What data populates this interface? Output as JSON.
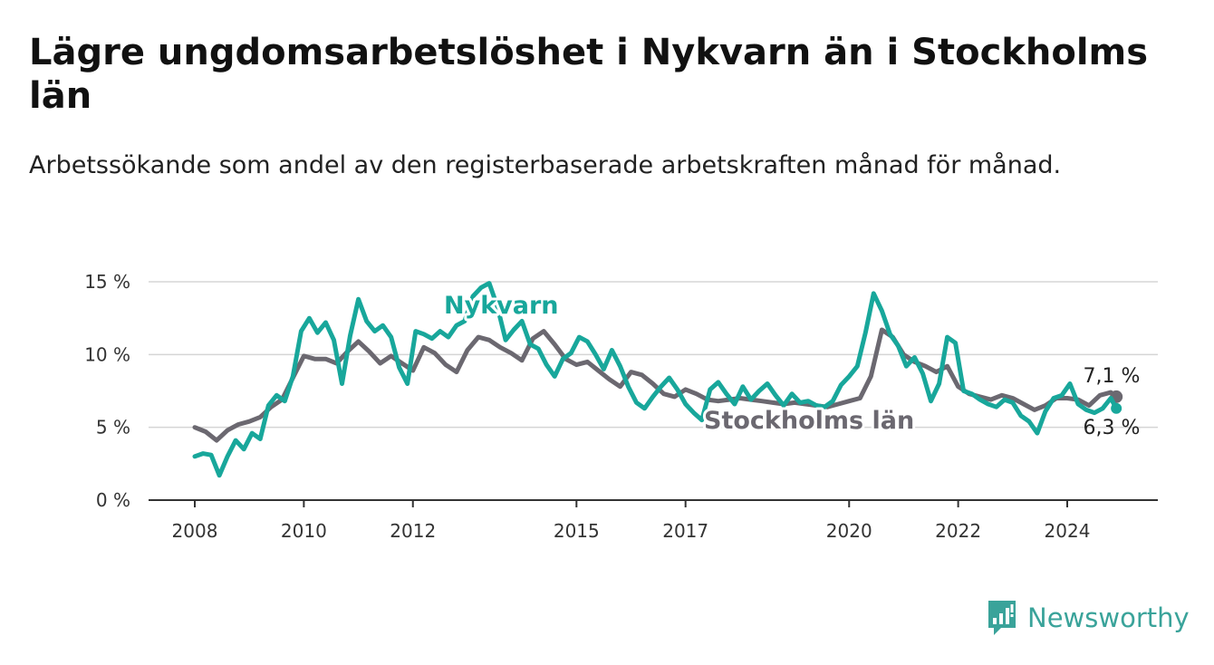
{
  "title": "Lägre ungdomsarbetslöshet i Nykvarn än i Stockholms län",
  "subtitle": "Arbetssökande som andel av den registerbaserade arbetskraften månad för månad.",
  "brand": {
    "name": "Newsworthy",
    "icon": "bar-chart-icon",
    "color": "#3aa39a"
  },
  "chart_data": {
    "type": "line",
    "ylim": [
      0,
      15
    ],
    "y_ticks": [
      0,
      5,
      10,
      15
    ],
    "y_tick_labels": [
      "0 %",
      "5 %",
      "10 %",
      "15 %"
    ],
    "x_ticks": [
      "2008",
      "2010",
      "2012",
      "2015",
      "2017",
      "2020",
      "2022",
      "2024"
    ],
    "grid": "horizontal",
    "series": [
      {
        "name": "Stockholms län",
        "color": "#6b6870",
        "end_label": "7,1 %",
        "points": [
          [
            2008.0,
            5.0
          ],
          [
            2008.2,
            4.7
          ],
          [
            2008.4,
            4.1
          ],
          [
            2008.6,
            4.8
          ],
          [
            2008.8,
            5.2
          ],
          [
            2009.0,
            5.4
          ],
          [
            2009.2,
            5.7
          ],
          [
            2009.4,
            6.4
          ],
          [
            2009.6,
            6.9
          ],
          [
            2009.8,
            8.4
          ],
          [
            2010.0,
            9.9
          ],
          [
            2010.2,
            9.7
          ],
          [
            2010.4,
            9.7
          ],
          [
            2010.6,
            9.4
          ],
          [
            2010.8,
            10.2
          ],
          [
            2011.0,
            10.9
          ],
          [
            2011.2,
            10.2
          ],
          [
            2011.4,
            9.4
          ],
          [
            2011.6,
            9.9
          ],
          [
            2011.8,
            9.4
          ],
          [
            2012.0,
            8.9
          ],
          [
            2012.2,
            10.5
          ],
          [
            2012.4,
            10.1
          ],
          [
            2012.6,
            9.3
          ],
          [
            2012.8,
            8.8
          ],
          [
            2013.0,
            10.3
          ],
          [
            2013.2,
            11.2
          ],
          [
            2013.4,
            11.0
          ],
          [
            2013.6,
            10.5
          ],
          [
            2013.8,
            10.1
          ],
          [
            2014.0,
            9.6
          ],
          [
            2014.2,
            11.1
          ],
          [
            2014.4,
            11.6
          ],
          [
            2014.6,
            10.7
          ],
          [
            2014.8,
            9.7
          ],
          [
            2015.0,
            9.3
          ],
          [
            2015.2,
            9.5
          ],
          [
            2015.4,
            8.9
          ],
          [
            2015.6,
            8.3
          ],
          [
            2015.8,
            7.8
          ],
          [
            2016.0,
            8.8
          ],
          [
            2016.2,
            8.6
          ],
          [
            2016.4,
            8.0
          ],
          [
            2016.6,
            7.3
          ],
          [
            2016.8,
            7.1
          ],
          [
            2017.0,
            7.6
          ],
          [
            2017.2,
            7.3
          ],
          [
            2017.4,
            6.9
          ],
          [
            2017.6,
            6.8
          ],
          [
            2017.8,
            6.9
          ],
          [
            2018.0,
            7.0
          ],
          [
            2018.2,
            6.9
          ],
          [
            2018.4,
            6.8
          ],
          [
            2018.6,
            6.7
          ],
          [
            2018.8,
            6.6
          ],
          [
            2019.0,
            6.7
          ],
          [
            2019.2,
            6.6
          ],
          [
            2019.4,
            6.5
          ],
          [
            2019.6,
            6.4
          ],
          [
            2019.8,
            6.6
          ],
          [
            2020.0,
            6.8
          ],
          [
            2020.2,
            7.0
          ],
          [
            2020.4,
            8.5
          ],
          [
            2020.6,
            11.7
          ],
          [
            2020.8,
            11.2
          ],
          [
            2021.0,
            10.0
          ],
          [
            2021.2,
            9.5
          ],
          [
            2021.4,
            9.2
          ],
          [
            2021.6,
            8.8
          ],
          [
            2021.8,
            9.2
          ],
          [
            2022.0,
            7.8
          ],
          [
            2022.2,
            7.3
          ],
          [
            2022.4,
            7.1
          ],
          [
            2022.6,
            6.9
          ],
          [
            2022.8,
            7.2
          ],
          [
            2023.0,
            7.0
          ],
          [
            2023.2,
            6.6
          ],
          [
            2023.4,
            6.2
          ],
          [
            2023.6,
            6.5
          ],
          [
            2023.8,
            7.0
          ],
          [
            2024.0,
            7.0
          ],
          [
            2024.2,
            6.9
          ],
          [
            2024.4,
            6.5
          ],
          [
            2024.6,
            7.2
          ],
          [
            2024.8,
            7.4
          ],
          [
            2024.9,
            7.1
          ]
        ]
      },
      {
        "name": "Nykvarn",
        "color": "#18a79b",
        "end_label": "6,3 %",
        "points": [
          [
            2008.0,
            3.0
          ],
          [
            2008.15,
            3.2
          ],
          [
            2008.3,
            3.1
          ],
          [
            2008.45,
            1.7
          ],
          [
            2008.6,
            3.0
          ],
          [
            2008.75,
            4.1
          ],
          [
            2008.9,
            3.5
          ],
          [
            2009.05,
            4.6
          ],
          [
            2009.2,
            4.2
          ],
          [
            2009.35,
            6.5
          ],
          [
            2009.5,
            7.2
          ],
          [
            2009.65,
            6.8
          ],
          [
            2009.8,
            8.5
          ],
          [
            2009.95,
            11.6
          ],
          [
            2010.1,
            12.5
          ],
          [
            2010.25,
            11.5
          ],
          [
            2010.4,
            12.2
          ],
          [
            2010.55,
            11.0
          ],
          [
            2010.7,
            8.0
          ],
          [
            2010.85,
            11.3
          ],
          [
            2011.0,
            13.8
          ],
          [
            2011.15,
            12.3
          ],
          [
            2011.3,
            11.6
          ],
          [
            2011.45,
            12.0
          ],
          [
            2011.6,
            11.2
          ],
          [
            2011.75,
            9.1
          ],
          [
            2011.9,
            8.0
          ],
          [
            2012.05,
            11.6
          ],
          [
            2012.2,
            11.4
          ],
          [
            2012.35,
            11.1
          ],
          [
            2012.5,
            11.6
          ],
          [
            2012.65,
            11.2
          ],
          [
            2012.8,
            12.0
          ],
          [
            2012.95,
            12.3
          ],
          [
            2013.1,
            14.0
          ],
          [
            2013.25,
            14.6
          ],
          [
            2013.4,
            14.9
          ],
          [
            2013.55,
            13.3
          ],
          [
            2013.7,
            11.0
          ],
          [
            2013.85,
            11.7
          ],
          [
            2014.0,
            12.3
          ],
          [
            2014.15,
            10.7
          ],
          [
            2014.3,
            10.4
          ],
          [
            2014.45,
            9.3
          ],
          [
            2014.6,
            8.5
          ],
          [
            2014.75,
            9.7
          ],
          [
            2014.9,
            10.1
          ],
          [
            2015.05,
            11.2
          ],
          [
            2015.2,
            10.9
          ],
          [
            2015.35,
            10.0
          ],
          [
            2015.5,
            9.0
          ],
          [
            2015.65,
            10.3
          ],
          [
            2015.8,
            9.2
          ],
          [
            2015.95,
            7.8
          ],
          [
            2016.1,
            6.7
          ],
          [
            2016.25,
            6.3
          ],
          [
            2016.4,
            7.1
          ],
          [
            2016.55,
            7.8
          ],
          [
            2016.7,
            8.4
          ],
          [
            2016.85,
            7.6
          ],
          [
            2017.0,
            6.6
          ],
          [
            2017.15,
            6.0
          ],
          [
            2017.3,
            5.5
          ],
          [
            2017.45,
            7.6
          ],
          [
            2017.6,
            8.1
          ],
          [
            2017.75,
            7.3
          ],
          [
            2017.9,
            6.6
          ],
          [
            2018.05,
            7.8
          ],
          [
            2018.2,
            6.9
          ],
          [
            2018.35,
            7.5
          ],
          [
            2018.5,
            8.0
          ],
          [
            2018.65,
            7.2
          ],
          [
            2018.8,
            6.5
          ],
          [
            2018.95,
            7.3
          ],
          [
            2019.1,
            6.7
          ],
          [
            2019.25,
            6.8
          ],
          [
            2019.4,
            6.5
          ],
          [
            2019.55,
            6.4
          ],
          [
            2019.7,
            6.8
          ],
          [
            2019.85,
            7.9
          ],
          [
            2020.0,
            8.5
          ],
          [
            2020.15,
            9.2
          ],
          [
            2020.3,
            11.5
          ],
          [
            2020.45,
            14.2
          ],
          [
            2020.6,
            13.0
          ],
          [
            2020.75,
            11.4
          ],
          [
            2020.9,
            10.6
          ],
          [
            2021.05,
            9.2
          ],
          [
            2021.2,
            9.8
          ],
          [
            2021.35,
            8.7
          ],
          [
            2021.5,
            6.8
          ],
          [
            2021.65,
            8.0
          ],
          [
            2021.8,
            11.2
          ],
          [
            2021.95,
            10.8
          ],
          [
            2022.1,
            7.5
          ],
          [
            2022.25,
            7.3
          ],
          [
            2022.4,
            6.9
          ],
          [
            2022.55,
            6.6
          ],
          [
            2022.7,
            6.4
          ],
          [
            2022.85,
            6.9
          ],
          [
            2023.0,
            6.7
          ],
          [
            2023.15,
            5.8
          ],
          [
            2023.3,
            5.4
          ],
          [
            2023.45,
            4.6
          ],
          [
            2023.6,
            6.1
          ],
          [
            2023.75,
            7.0
          ],
          [
            2023.9,
            7.2
          ],
          [
            2024.05,
            8.0
          ],
          [
            2024.2,
            6.6
          ],
          [
            2024.35,
            6.2
          ],
          [
            2024.5,
            6.0
          ],
          [
            2024.65,
            6.3
          ],
          [
            2024.8,
            7.0
          ],
          [
            2024.9,
            6.3
          ]
        ]
      }
    ]
  }
}
